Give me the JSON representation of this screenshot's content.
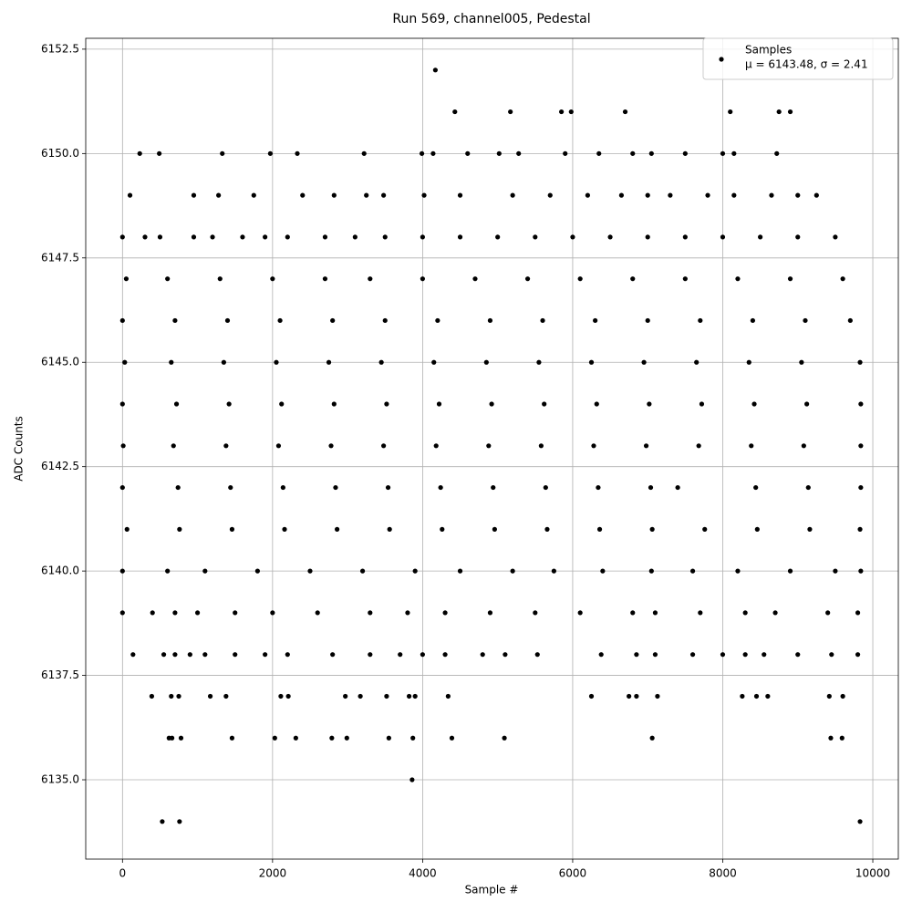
{
  "chart_data": {
    "type": "scatter",
    "title": "Run 569, channel005, Pedestal",
    "x_label": "Sample #",
    "y_label": "ADC Counts",
    "annotation": "μ = 6143.48, σ = 2.41",
    "legend_position": "upper right",
    "grid": true,
    "xlim": [
      -490,
      10340
    ],
    "ylim": [
      6133.1,
      6152.76
    ],
    "xticks": [
      0,
      2000,
      4000,
      6000,
      8000,
      10000
    ],
    "yticks": [
      {
        "value": 6135,
        "label": "6135.0"
      },
      6137.5,
      {
        "value": 6140,
        "label": "6140.0"
      },
      6142.5,
      {
        "value": 6145,
        "label": "6145.0"
      },
      6147.5,
      {
        "value": 6150,
        "label": "6150.0"
      },
      6152.5
    ],
    "series": [
      {
        "name": "Samples",
        "color": "#000000",
        "x": [
          4170,
          4430,
          5170,
          5850,
          5980,
          6700,
          8100,
          8750,
          8900,
          230,
          490,
          1330,
          1970,
          2330,
          3220,
          3990,
          4140,
          4600,
          5020,
          5280,
          5900,
          6350,
          6800,
          7050,
          7500,
          8000,
          8150,
          8720,
          100,
          950,
          1280,
          1750,
          2400,
          2820,
          3250,
          3480,
          4020,
          4500,
          5200,
          5700,
          6200,
          6650,
          7000,
          7300,
          7800,
          8150,
          8650,
          9000,
          9250,
          0,
          300,
          500,
          950,
          1200,
          1600,
          1900,
          2200,
          2700,
          3100,
          3500,
          4000,
          4500,
          5000,
          5500,
          6000,
          6500,
          7000,
          7500,
          8000,
          8500,
          9000,
          9500,
          50,
          600,
          1300,
          2000,
          2700,
          3300,
          4000,
          4700,
          5400,
          6100,
          6800,
          7500,
          8200,
          8900,
          9600,
          0,
          700,
          1400,
          2100,
          2800,
          3500,
          4200,
          4900,
          5600,
          6300,
          7000,
          7700,
          8400,
          9100,
          9700,
          30,
          650,
          1350,
          2050,
          2750,
          3450,
          4150,
          4850,
          5550,
          6250,
          6950,
          7650,
          8350,
          9050,
          9830,
          0,
          720,
          1420,
          2120,
          2820,
          3520,
          4220,
          4920,
          5620,
          6320,
          7020,
          7720,
          8420,
          9120,
          9840,
          10,
          680,
          1380,
          2080,
          2780,
          3480,
          4180,
          4880,
          5580,
          6280,
          6980,
          7680,
          8380,
          9080,
          9840,
          0,
          740,
          1440,
          2140,
          2840,
          3540,
          4240,
          4940,
          5640,
          6340,
          7040,
          7400,
          8440,
          9140,
          9840,
          60,
          760,
          1460,
          2160,
          2860,
          3560,
          4260,
          4960,
          5660,
          6360,
          7060,
          7760,
          8460,
          9160,
          9830,
          0,
          600,
          1100,
          1800,
          2500,
          3200,
          3900,
          4500,
          5200,
          5750,
          6400,
          7050,
          7600,
          8200,
          8900,
          9500,
          9840,
          0,
          400,
          700,
          1000,
          1500,
          2000,
          2600,
          3300,
          3800,
          4300,
          4900,
          5500,
          6100,
          6800,
          7100,
          7700,
          8300,
          8700,
          9400,
          9800,
          140,
          550,
          700,
          900,
          1100,
          1500,
          1900,
          2200,
          2800,
          3300,
          3700,
          4000,
          4300,
          4800,
          5100,
          5530,
          6380,
          6850,
          7100,
          7600,
          8000,
          8300,
          8550,
          9000,
          9450,
          9800,
          390,
          650,
          750,
          1170,
          1380,
          2110,
          2210,
          2970,
          3170,
          3520,
          3820,
          3900,
          4340,
          6250,
          6750,
          6850,
          7130,
          8260,
          8450,
          8600,
          9420,
          9600,
          620,
          660,
          780,
          1460,
          2030,
          2310,
          2790,
          2990,
          3550,
          3870,
          4390,
          5090,
          7060,
          9440,
          9590,
          3860,
          530,
          760,
          9830
        ],
        "values": [
          6152,
          6151,
          6151,
          6151,
          6151,
          6151,
          6151,
          6151,
          6151,
          6150,
          6150,
          6150,
          6150,
          6150,
          6150,
          6150,
          6150,
          6150,
          6150,
          6150,
          6150,
          6150,
          6150,
          6150,
          6150,
          6150,
          6150,
          6150,
          6149,
          6149,
          6149,
          6149,
          6149,
          6149,
          6149,
          6149,
          6149,
          6149,
          6149,
          6149,
          6149,
          6149,
          6149,
          6149,
          6149,
          6149,
          6149,
          6149,
          6149,
          6148,
          6148,
          6148,
          6148,
          6148,
          6148,
          6148,
          6148,
          6148,
          6148,
          6148,
          6148,
          6148,
          6148,
          6148,
          6148,
          6148,
          6148,
          6148,
          6148,
          6148,
          6148,
          6148,
          6147,
          6147,
          6147,
          6147,
          6147,
          6147,
          6147,
          6147,
          6147,
          6147,
          6147,
          6147,
          6147,
          6147,
          6147,
          6146,
          6146,
          6146,
          6146,
          6146,
          6146,
          6146,
          6146,
          6146,
          6146,
          6146,
          6146,
          6146,
          6146,
          6146,
          6145,
          6145,
          6145,
          6145,
          6145,
          6145,
          6145,
          6145,
          6145,
          6145,
          6145,
          6145,
          6145,
          6145,
          6145,
          6144,
          6144,
          6144,
          6144,
          6144,
          6144,
          6144,
          6144,
          6144,
          6144,
          6144,
          6144,
          6144,
          6144,
          6144,
          6143,
          6143,
          6143,
          6143,
          6143,
          6143,
          6143,
          6143,
          6143,
          6143,
          6143,
          6143,
          6143,
          6143,
          6143,
          6142,
          6142,
          6142,
          6142,
          6142,
          6142,
          6142,
          6142,
          6142,
          6142,
          6142,
          6142,
          6142,
          6142,
          6142,
          6141,
          6141,
          6141,
          6141,
          6141,
          6141,
          6141,
          6141,
          6141,
          6141,
          6141,
          6141,
          6141,
          6141,
          6141,
          6140,
          6140,
          6140,
          6140,
          6140,
          6140,
          6140,
          6140,
          6140,
          6140,
          6140,
          6140,
          6140,
          6140,
          6140,
          6140,
          6140,
          6139,
          6139,
          6139,
          6139,
          6139,
          6139,
          6139,
          6139,
          6139,
          6139,
          6139,
          6139,
          6139,
          6139,
          6139,
          6139,
          6139,
          6139,
          6139,
          6139,
          6138,
          6138,
          6138,
          6138,
          6138,
          6138,
          6138,
          6138,
          6138,
          6138,
          6138,
          6138,
          6138,
          6138,
          6138,
          6138,
          6138,
          6138,
          6138,
          6138,
          6138,
          6138,
          6138,
          6138,
          6138,
          6138,
          6137,
          6137,
          6137,
          6137,
          6137,
          6137,
          6137,
          6137,
          6137,
          6137,
          6137,
          6137,
          6137,
          6137,
          6137,
          6137,
          6137,
          6137,
          6137,
          6137,
          6137,
          6137,
          6136,
          6136,
          6136,
          6136,
          6136,
          6136,
          6136,
          6136,
          6136,
          6136,
          6136,
          6136,
          6136,
          6136,
          6136,
          6135,
          6134,
          6134,
          6134
        ]
      }
    ]
  }
}
